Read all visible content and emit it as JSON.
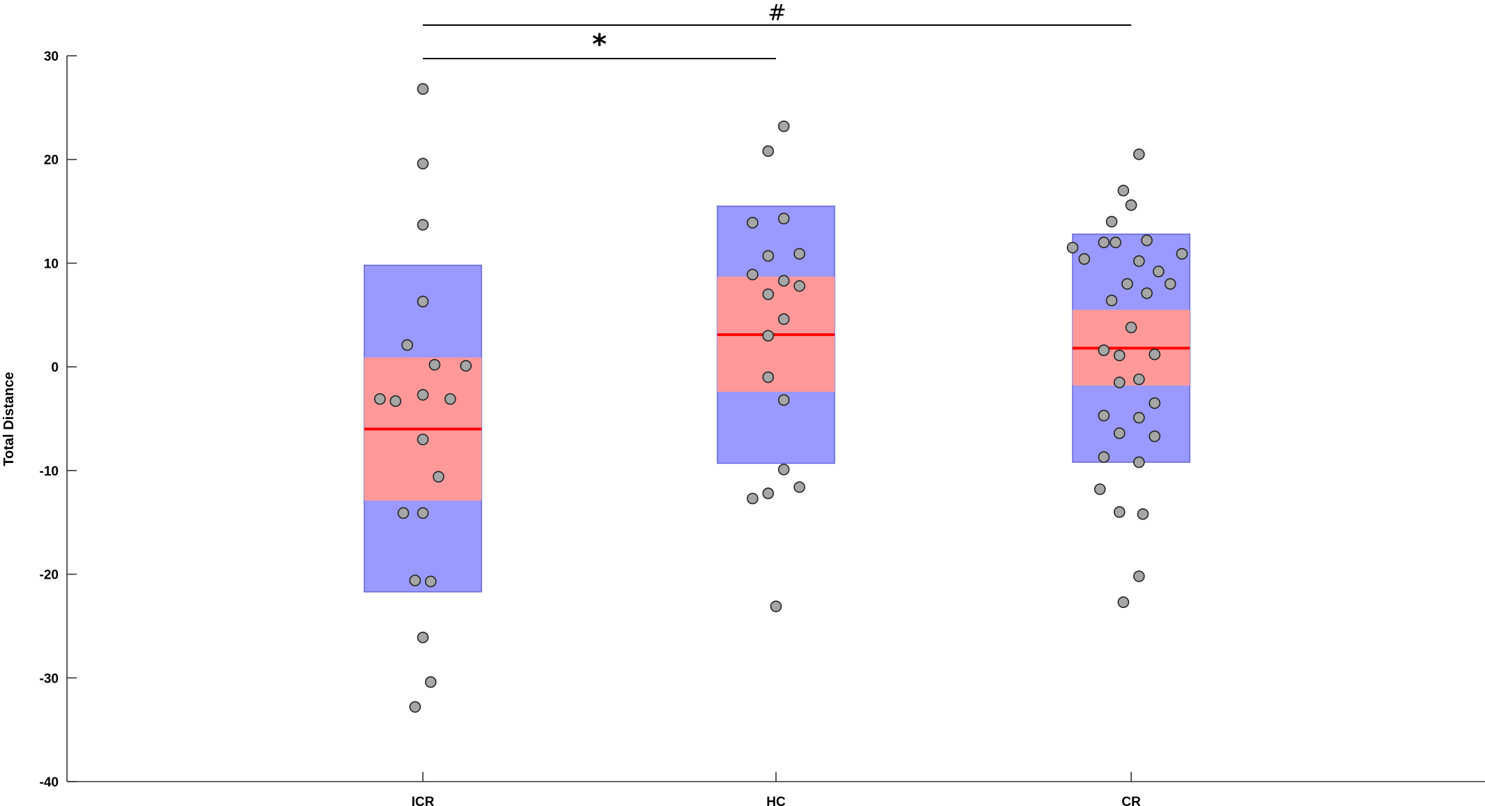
{
  "chart_data": {
    "type": "scatter",
    "subtype": "box-with-jitter",
    "title": "",
    "xlabel": "",
    "ylabel": "Total Distance",
    "ylim": [
      -40,
      30
    ],
    "yticks": [
      30,
      20,
      10,
      0,
      -10,
      -20,
      -30,
      -40
    ],
    "categories": [
      "ICR",
      "HC",
      "CR"
    ],
    "grid": false,
    "legend": "none",
    "colors": {
      "outer_box": "#9999ff",
      "inner_box": "#ff9999",
      "median": "#ff0000",
      "point_fill": "#a6a6a6",
      "point_stroke": "#222222"
    },
    "groups": [
      {
        "name": "ICR",
        "median": -6,
        "inner": [
          -12.9,
          0.9
        ],
        "outer": [
          -21.7,
          9.8
        ],
        "points": [
          {
            "x": 0.0,
            "y": 26.8
          },
          {
            "x": 0.0,
            "y": 19.6
          },
          {
            "x": 0.0,
            "y": 13.7
          },
          {
            "x": 0.0,
            "y": 6.3
          },
          {
            "x": -0.04,
            "y": 2.1
          },
          {
            "x": 0.03,
            "y": 0.2
          },
          {
            "x": 0.11,
            "y": 0.1
          },
          {
            "x": -0.11,
            "y": -3.1
          },
          {
            "x": -0.07,
            "y": -3.3
          },
          {
            "x": 0.0,
            "y": -2.7
          },
          {
            "x": 0.07,
            "y": -3.1
          },
          {
            "x": 0.0,
            "y": -7.0
          },
          {
            "x": 0.04,
            "y": -10.6
          },
          {
            "x": -0.05,
            "y": -14.1
          },
          {
            "x": 0.0,
            "y": -14.1
          },
          {
            "x": -0.02,
            "y": -20.6
          },
          {
            "x": 0.02,
            "y": -20.7
          },
          {
            "x": 0.0,
            "y": -26.1
          },
          {
            "x": 0.02,
            "y": -30.4
          },
          {
            "x": -0.02,
            "y": -32.8
          }
        ]
      },
      {
        "name": "HC",
        "median": 3.1,
        "inner": [
          -2.4,
          8.7
        ],
        "outer": [
          -9.3,
          15.5
        ],
        "points": [
          {
            "x": 0.02,
            "y": 23.2
          },
          {
            "x": -0.02,
            "y": 20.8
          },
          {
            "x": -0.06,
            "y": 13.9
          },
          {
            "x": 0.02,
            "y": 14.3
          },
          {
            "x": -0.02,
            "y": 10.7
          },
          {
            "x": 0.06,
            "y": 10.9
          },
          {
            "x": -0.06,
            "y": 8.9
          },
          {
            "x": 0.02,
            "y": 8.3
          },
          {
            "x": 0.06,
            "y": 7.8
          },
          {
            "x": -0.02,
            "y": 7.0
          },
          {
            "x": 0.02,
            "y": 4.6
          },
          {
            "x": -0.02,
            "y": 3.0
          },
          {
            "x": -0.02,
            "y": -1.0
          },
          {
            "x": 0.02,
            "y": -3.2
          },
          {
            "x": 0.02,
            "y": -9.9
          },
          {
            "x": 0.06,
            "y": -11.6
          },
          {
            "x": -0.02,
            "y": -12.2
          },
          {
            "x": -0.06,
            "y": -12.7
          },
          {
            "x": 0.0,
            "y": -23.1
          }
        ]
      },
      {
        "name": "CR",
        "median": 1.8,
        "inner": [
          -1.8,
          5.5
        ],
        "outer": [
          -9.2,
          12.8
        ],
        "points": [
          {
            "x": 0.02,
            "y": 20.5
          },
          {
            "x": -0.02,
            "y": 17.0
          },
          {
            "x": 0.0,
            "y": 15.6
          },
          {
            "x": -0.05,
            "y": 14.0
          },
          {
            "x": 0.04,
            "y": 12.2
          },
          {
            "x": -0.07,
            "y": 12.0
          },
          {
            "x": -0.04,
            "y": 12.0
          },
          {
            "x": -0.15,
            "y": 11.5
          },
          {
            "x": 0.13,
            "y": 10.9
          },
          {
            "x": -0.12,
            "y": 10.4
          },
          {
            "x": 0.02,
            "y": 10.2
          },
          {
            "x": 0.07,
            "y": 9.2
          },
          {
            "x": -0.01,
            "y": 8.0
          },
          {
            "x": 0.1,
            "y": 8.0
          },
          {
            "x": 0.04,
            "y": 7.1
          },
          {
            "x": -0.05,
            "y": 6.4
          },
          {
            "x": 0.0,
            "y": 3.8
          },
          {
            "x": -0.07,
            "y": 1.6
          },
          {
            "x": -0.03,
            "y": 1.1
          },
          {
            "x": 0.06,
            "y": 1.2
          },
          {
            "x": 0.02,
            "y": -1.2
          },
          {
            "x": -0.03,
            "y": -1.5
          },
          {
            "x": 0.06,
            "y": -3.5
          },
          {
            "x": -0.07,
            "y": -4.7
          },
          {
            "x": 0.02,
            "y": -4.9
          },
          {
            "x": -0.03,
            "y": -6.4
          },
          {
            "x": 0.06,
            "y": -6.7
          },
          {
            "x": -0.07,
            "y": -8.7
          },
          {
            "x": 0.02,
            "y": -9.2
          },
          {
            "x": -0.08,
            "y": -11.8
          },
          {
            "x": -0.03,
            "y": -14.0
          },
          {
            "x": 0.03,
            "y": -14.2
          },
          {
            "x": 0.02,
            "y": -20.2
          },
          {
            "x": -0.02,
            "y": -22.7
          }
        ]
      }
    ],
    "annotations": [
      {
        "label": "*",
        "from": "ICR",
        "to": "HC"
      },
      {
        "label": "#",
        "from": "ICR",
        "to": "CR"
      }
    ]
  }
}
